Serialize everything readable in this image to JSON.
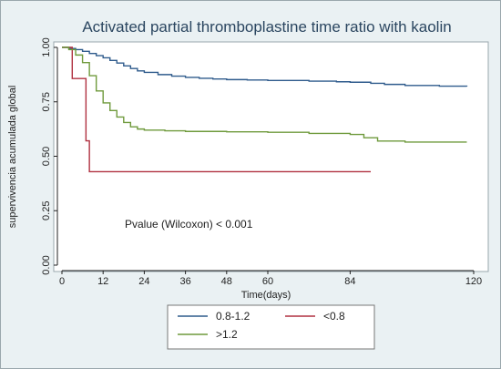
{
  "chart_data": {
    "type": "line",
    "title": "Activated partial thromboplastine time ratio with kaolin",
    "xlabel": "Time(days)",
    "ylabel": "supervivencia acumulada global",
    "xlim": [
      0,
      120
    ],
    "ylim": [
      0,
      1
    ],
    "xticks": [
      0,
      12,
      24,
      36,
      48,
      60,
      84,
      120
    ],
    "yticks": [
      "0.00",
      "0.25",
      "0.50",
      "0.75",
      "1.00"
    ],
    "annotation": "Pvalue (Wilcoxon) < 0.001",
    "legend_position": "bottom",
    "grid": false,
    "series": [
      {
        "name": "0.8-1.2",
        "color": "#2f5b8c",
        "x": [
          0,
          2,
          4,
          6,
          8,
          10,
          12,
          14,
          16,
          18,
          20,
          22,
          24,
          28,
          32,
          36,
          40,
          44,
          48,
          54,
          60,
          72,
          80,
          84,
          90,
          94,
          100,
          110,
          118
        ],
        "y": [
          1.0,
          0.995,
          0.99,
          0.982,
          0.972,
          0.962,
          0.952,
          0.94,
          0.928,
          0.915,
          0.903,
          0.892,
          0.885,
          0.875,
          0.868,
          0.862,
          0.858,
          0.855,
          0.852,
          0.85,
          0.848,
          0.845,
          0.842,
          0.84,
          0.835,
          0.83,
          0.825,
          0.822,
          0.82
        ]
      },
      {
        "name": "<0.8",
        "color": "#b03040",
        "x": [
          0,
          3,
          3,
          7,
          7,
          8,
          8,
          90
        ],
        "y": [
          1.0,
          1.0,
          0.857,
          0.857,
          0.571,
          0.571,
          0.429,
          0.429
        ]
      },
      {
        "name": ">1.2",
        "color": "#6f9a3c",
        "x": [
          0,
          2,
          4,
          6,
          8,
          10,
          12,
          14,
          16,
          18,
          20,
          22,
          24,
          30,
          36,
          48,
          60,
          72,
          84,
          88,
          92,
          100,
          110,
          118
        ],
        "y": [
          1.0,
          0.99,
          0.965,
          0.93,
          0.87,
          0.8,
          0.745,
          0.71,
          0.68,
          0.655,
          0.635,
          0.625,
          0.62,
          0.617,
          0.614,
          0.612,
          0.61,
          0.605,
          0.6,
          0.585,
          0.57,
          0.565,
          0.565,
          0.565
        ]
      }
    ]
  }
}
